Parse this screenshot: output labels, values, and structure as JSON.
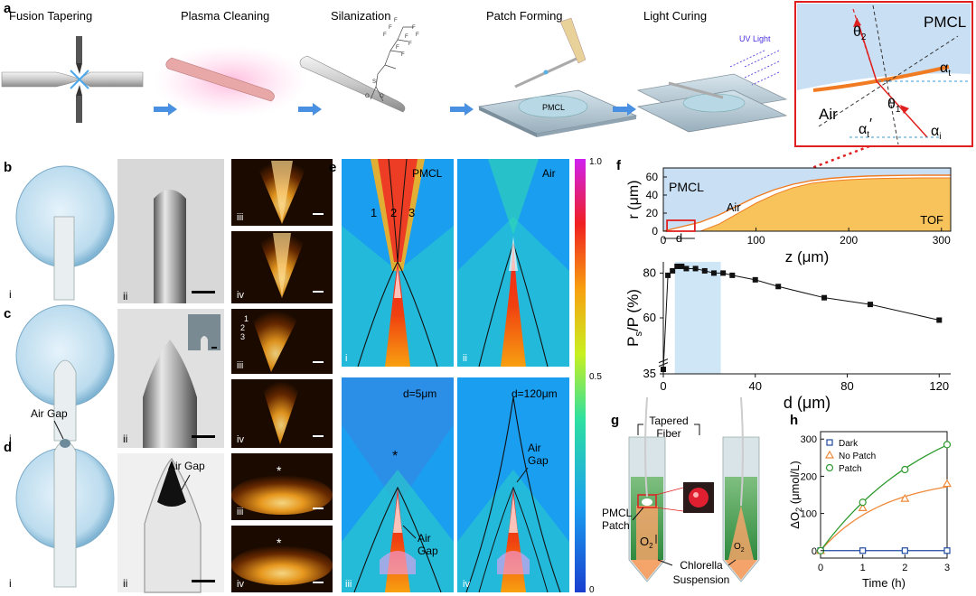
{
  "colors": {
    "pmcl_blue": "#c9dff3",
    "tof_orange": "#f7c35a",
    "curve_orange": "#f07b22",
    "arrow_blue": "#4a90e2",
    "red": "#e02020",
    "dark_bg": "#1a0a00",
    "pale_blue": "#cfe6f7",
    "green_fill": "#3f9a52",
    "dark_series": "#1f4aa0",
    "nopatch_series": "#f08a3a",
    "patch_series": "#2e9a2e"
  },
  "panel_letters": [
    "a",
    "b",
    "c",
    "d",
    "e",
    "f",
    "g",
    "h"
  ],
  "panel_a": {
    "steps": [
      "Fusion Tapering",
      "Plasma Cleaning",
      "Silanization",
      "Patch Forming",
      "Light Curing"
    ],
    "pmcl_label": "PMCL",
    "uv_label": "UV Light",
    "inset": {
      "pmcl": "PMCL",
      "air": "Air",
      "theta2": "θ",
      "theta2_sub": "2",
      "theta1": "θ",
      "theta1_sub": "1",
      "alpha_t": "α",
      "alpha_t_sub": "t",
      "alpha_i": "α",
      "alpha_i_sub": "i",
      "alpha_t_prime": "α",
      "alpha_t_prime_sub": "t",
      "alpha_t_prime_mark": "′"
    }
  },
  "panel_bcd": {
    "roman": [
      "i",
      "ii",
      "iii",
      "iv"
    ],
    "air_gap": "Air Gap",
    "c_iii_labels": [
      "1",
      "2",
      "3"
    ],
    "star": "*"
  },
  "panel_e": {
    "labels": [
      "PMCL",
      "Air",
      "d=5μm",
      "d=120μm"
    ],
    "beam_numbers": [
      "1",
      "2",
      "3"
    ],
    "air_gap": "Air\nGap",
    "air_gap_lines": [
      "Air",
      "Gap"
    ],
    "roman": [
      "i",
      "ii",
      "iii",
      "iv"
    ],
    "star": "*",
    "colorbar_ticks": [
      "1.0",
      "0.5",
      "0"
    ]
  },
  "panel_f": {
    "top": {
      "ylabel": "r (μm)",
      "xlabel": "z (μm)",
      "xticks": [
        "0",
        "100",
        "200",
        "300"
      ],
      "yticks": [
        "0",
        "20",
        "40",
        "60"
      ],
      "region_labels": [
        "PMCL",
        "Air",
        "TOF"
      ],
      "d_label": "d"
    },
    "bottom": {
      "ylabel_main": "P",
      "ylabel_sub": "s",
      "ylabel_rest": "/P (%)",
      "xlabel": "d (μm)",
      "xticks": [
        "0",
        "40",
        "80",
        "120"
      ],
      "yticks": [
        "35",
        "60",
        "80"
      ]
    }
  },
  "panel_g": {
    "tapered_fiber": "Tapered\nFiber",
    "tapered_lines": [
      "Tapered",
      "Fiber"
    ],
    "patch_lines": [
      "PMCL",
      "Patch"
    ],
    "suspension_lines": [
      "Chlorella",
      "Suspension"
    ],
    "o2": "O",
    "o2_sub": "2"
  },
  "panel_h": {
    "ylabel_main": "ΔO",
    "ylabel_sub": "2",
    "ylabel_rest": " (μmol/L)",
    "xlabel": "Time (h)",
    "xticks": [
      "0",
      "1",
      "2",
      "3"
    ],
    "yticks": [
      "0",
      "100",
      "200",
      "300"
    ],
    "legend": [
      "Dark",
      "No Patch",
      "Patch"
    ]
  },
  "chart_data": [
    {
      "type": "line",
      "panel": "f-top",
      "xlabel": "z (μm)",
      "ylabel": "r (μm)",
      "xlim": [
        0,
        310
      ],
      "ylim": [
        0,
        70
      ],
      "series": [
        {
          "x": [
            0,
            20,
            40,
            60,
            80,
            100,
            120,
            140,
            160,
            180,
            200,
            220,
            240,
            260,
            280,
            300,
            310
          ],
          "y": [
            0,
            5,
            10,
            18,
            28,
            38,
            46,
            52,
            56,
            58.5,
            60,
            61,
            61.5,
            61.8,
            62,
            62,
            62
          ]
        }
      ]
    },
    {
      "type": "line",
      "panel": "f-bottom",
      "xlabel": "d (μm)",
      "ylabel": "Ps/P (%)",
      "xlim": [
        0,
        125
      ],
      "ylim": [
        35,
        85
      ],
      "highlight_x_range": [
        5,
        25
      ],
      "series": [
        {
          "x": [
            0,
            2,
            4,
            6,
            8,
            10,
            14,
            18,
            22,
            26,
            30,
            40,
            50,
            70,
            90,
            120
          ],
          "y": [
            37,
            79,
            81,
            83,
            83,
            82,
            82,
            81,
            80,
            80,
            79,
            77,
            74,
            69,
            66,
            59
          ]
        }
      ]
    },
    {
      "type": "scatter",
      "panel": "h",
      "xlabel": "Time (h)",
      "ylabel": "ΔO2 (μmol/L)",
      "xlim": [
        0,
        3
      ],
      "ylim": [
        -20,
        320
      ],
      "series": [
        {
          "name": "Dark",
          "x": [
            0,
            1,
            2,
            3
          ],
          "y": [
            0,
            0,
            0,
            0
          ]
        },
        {
          "name": "No Patch",
          "x": [
            0,
            1,
            2,
            3
          ],
          "y": [
            0,
            115,
            140,
            180
          ]
        },
        {
          "name": "Patch",
          "x": [
            0,
            1,
            2,
            3
          ],
          "y": [
            0,
            130,
            218,
            285
          ]
        }
      ],
      "legend": "top-left"
    }
  ]
}
